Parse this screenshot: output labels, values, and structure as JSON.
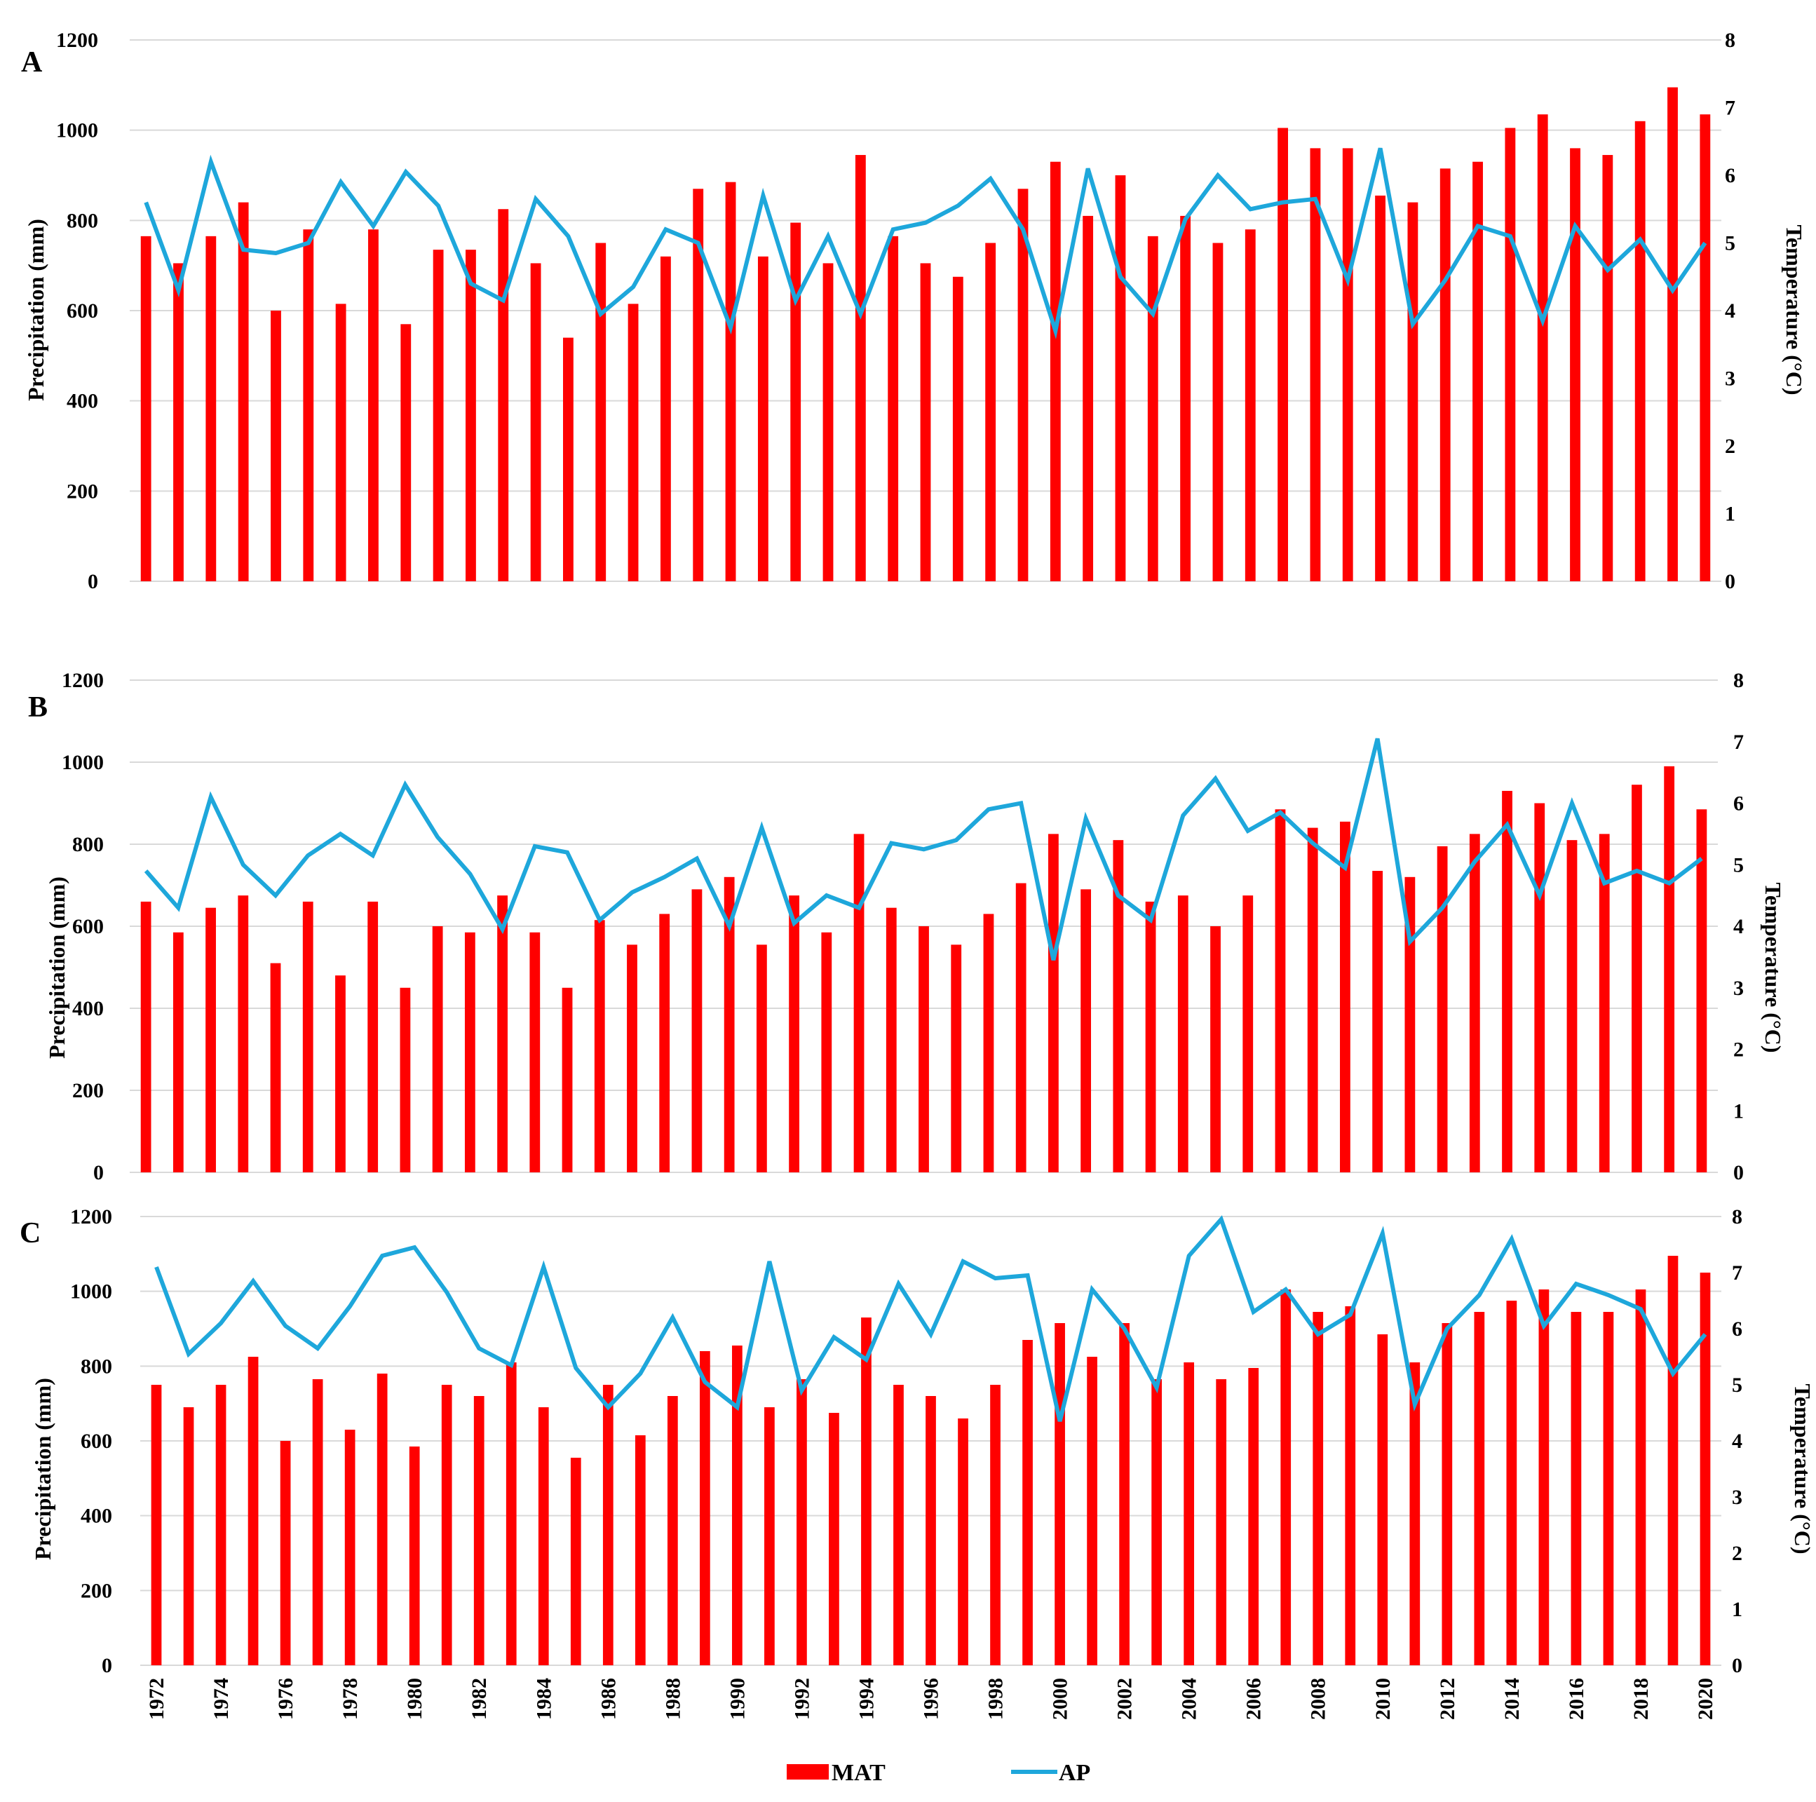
{
  "chart_data": [
    {
      "type": "bar",
      "panel": "A",
      "x": [
        1972,
        1973,
        1974,
        1975,
        1976,
        1977,
        1978,
        1979,
        1980,
        1981,
        1982,
        1983,
        1984,
        1985,
        1986,
        1987,
        1988,
        1989,
        1990,
        1991,
        1992,
        1993,
        1994,
        1995,
        1996,
        1997,
        1998,
        1999,
        2000,
        2001,
        2002,
        2003,
        2004,
        2005,
        2006,
        2007,
        2008,
        2009,
        2010,
        2011,
        2012,
        2013,
        2014,
        2015,
        2016,
        2017,
        2018,
        2019,
        2020
      ],
      "xlabel": "",
      "ylabel": "Precipitation (mm)",
      "y2label": "Temperature (°C)",
      "ylim": [
        0,
        1200
      ],
      "y2lim": [
        0,
        8
      ],
      "yticks": [
        0,
        200,
        400,
        600,
        800,
        1000,
        1200
      ],
      "y2ticks": [
        0,
        1,
        2,
        3,
        4,
        5,
        6,
        7,
        8
      ],
      "grid": true,
      "series": [
        {
          "name": "MAT",
          "type": "bar",
          "axis": "left",
          "color": "#ff0000",
          "values": [
            765,
            705,
            765,
            840,
            600,
            780,
            615,
            780,
            570,
            735,
            735,
            825,
            705,
            540,
            750,
            615,
            720,
            870,
            885,
            720,
            795,
            705,
            945,
            765,
            705,
            675,
            750,
            870,
            930,
            810,
            900,
            765,
            810,
            750,
            780,
            1005,
            960,
            960,
            855,
            840,
            915,
            930,
            1005,
            1035,
            960,
            945,
            1020,
            1095,
            1035
          ]
        },
        {
          "name": "AP",
          "type": "line",
          "axis": "right",
          "color": "#1ea7db",
          "values": [
            5.6,
            4.3,
            6.2,
            4.9,
            4.85,
            5.0,
            5.9,
            5.25,
            6.05,
            5.55,
            4.4,
            4.15,
            5.65,
            5.1,
            3.95,
            4.35,
            5.2,
            5.0,
            3.75,
            5.7,
            4.15,
            5.1,
            3.95,
            5.2,
            5.3,
            5.55,
            5.95,
            5.2,
            3.7,
            6.1,
            4.5,
            3.95,
            5.35,
            6.0,
            5.5,
            5.6,
            5.65,
            4.45,
            6.4,
            3.8,
            4.45,
            5.25,
            5.1,
            3.85,
            5.25,
            4.6,
            5.05,
            4.3,
            5.0
          ]
        }
      ]
    },
    {
      "type": "bar",
      "panel": "B",
      "x": [
        1972,
        1973,
        1974,
        1975,
        1976,
        1977,
        1978,
        1979,
        1980,
        1981,
        1982,
        1983,
        1984,
        1985,
        1986,
        1987,
        1988,
        1989,
        1990,
        1991,
        1992,
        1993,
        1994,
        1995,
        1996,
        1997,
        1998,
        1999,
        2000,
        2001,
        2002,
        2003,
        2004,
        2005,
        2006,
        2007,
        2008,
        2009,
        2010,
        2011,
        2012,
        2013,
        2014,
        2015,
        2016,
        2017,
        2018,
        2019,
        2020
      ],
      "xlabel": "",
      "ylabel": "Precipitation (mm)",
      "y2label": "Temperature (°C)",
      "ylim": [
        0,
        1200
      ],
      "y2lim": [
        0,
        8
      ],
      "yticks": [
        0,
        200,
        400,
        600,
        800,
        1000,
        1200
      ],
      "y2ticks": [
        0,
        1,
        2,
        3,
        4,
        5,
        6,
        7,
        8
      ],
      "grid": true,
      "series": [
        {
          "name": "MAT",
          "type": "bar",
          "axis": "left",
          "color": "#ff0000",
          "values": [
            660,
            585,
            645,
            675,
            510,
            660,
            480,
            660,
            450,
            600,
            585,
            675,
            585,
            450,
            615,
            555,
            630,
            690,
            720,
            555,
            675,
            585,
            825,
            645,
            600,
            555,
            630,
            705,
            825,
            690,
            810,
            660,
            675,
            600,
            675,
            885,
            840,
            855,
            735,
            720,
            795,
            825,
            930,
            900,
            810,
            825,
            945,
            990,
            885
          ]
        },
        {
          "name": "AP",
          "type": "line",
          "axis": "right",
          "color": "#1ea7db",
          "values": [
            4.9,
            4.3,
            6.1,
            5.0,
            4.5,
            5.15,
            5.5,
            5.15,
            6.3,
            5.45,
            4.85,
            3.95,
            5.3,
            5.2,
            4.1,
            4.55,
            4.8,
            5.1,
            4.0,
            5.6,
            4.05,
            4.5,
            4.3,
            5.35,
            5.25,
            5.4,
            5.9,
            6.0,
            3.45,
            5.75,
            4.5,
            4.1,
            5.8,
            6.4,
            5.55,
            5.85,
            5.35,
            4.95,
            7.05,
            3.75,
            4.3,
            5.05,
            5.65,
            4.5,
            6.0,
            4.7,
            4.9,
            4.7,
            5.1
          ]
        }
      ]
    },
    {
      "type": "bar",
      "panel": "C",
      "x": [
        1972,
        1973,
        1974,
        1975,
        1976,
        1977,
        1978,
        1979,
        1980,
        1981,
        1982,
        1983,
        1984,
        1985,
        1986,
        1987,
        1988,
        1989,
        1990,
        1991,
        1992,
        1993,
        1994,
        1995,
        1996,
        1997,
        1998,
        1999,
        2000,
        2001,
        2002,
        2003,
        2004,
        2005,
        2006,
        2007,
        2008,
        2009,
        2010,
        2011,
        2012,
        2013,
        2014,
        2015,
        2016,
        2017,
        2018,
        2019,
        2020
      ],
      "xtick_labels": [
        "1972",
        "1974",
        "1976",
        "1978",
        "1980",
        "1982",
        "1984",
        "1986",
        "1988",
        "1990",
        "1992",
        "1994",
        "1996",
        "1998",
        "2000",
        "2002",
        "2004",
        "2006",
        "2008",
        "2010",
        "2012",
        "2014",
        "2016",
        "2018",
        "2020"
      ],
      "xlabel": "",
      "ylabel": "Precipitation (mm)",
      "y2label": "Temperature (°C)",
      "ylim": [
        0,
        1200
      ],
      "y2lim": [
        0,
        8
      ],
      "yticks": [
        0,
        200,
        400,
        600,
        800,
        1000,
        1200
      ],
      "y2ticks": [
        0,
        1,
        2,
        3,
        4,
        5,
        6,
        7,
        8
      ],
      "grid": true,
      "series": [
        {
          "name": "MAT",
          "type": "bar",
          "axis": "left",
          "color": "#ff0000",
          "values": [
            750,
            690,
            750,
            825,
            600,
            765,
            630,
            780,
            585,
            750,
            720,
            810,
            690,
            555,
            750,
            615,
            720,
            840,
            855,
            690,
            765,
            675,
            930,
            750,
            720,
            660,
            750,
            870,
            915,
            825,
            915,
            765,
            810,
            765,
            795,
            1005,
            945,
            960,
            885,
            810,
            915,
            945,
            975,
            1005,
            945,
            945,
            1005,
            1095,
            1050
          ]
        },
        {
          "name": "AP",
          "type": "line",
          "axis": "right",
          "color": "#1ea7db",
          "values": [
            7.1,
            5.55,
            6.1,
            6.85,
            6.05,
            5.65,
            6.4,
            7.3,
            7.45,
            6.65,
            5.65,
            5.35,
            7.1,
            5.3,
            4.6,
            5.2,
            6.2,
            5.05,
            4.6,
            7.2,
            4.9,
            5.85,
            5.45,
            6.8,
            5.9,
            7.2,
            6.9,
            6.95,
            4.35,
            6.7,
            6.0,
            4.95,
            7.3,
            7.95,
            6.3,
            6.7,
            5.9,
            6.25,
            7.7,
            4.65,
            6.0,
            6.6,
            7.6,
            6.05,
            6.8,
            6.6,
            6.35,
            5.2,
            5.9
          ]
        }
      ]
    }
  ],
  "panels": [
    {
      "letter": "A",
      "ylabel": "Precipitation (mm)",
      "y2label": "Temperature (°C)"
    },
    {
      "letter": "B",
      "ylabel": "Precipitation (mm)",
      "y2label": "Temperature (°C)"
    },
    {
      "letter": "C",
      "ylabel": "Precipitation (mm)",
      "y2label": "Temperature (°C)"
    }
  ],
  "legend": [
    {
      "label": "MAT",
      "color": "#ff0000",
      "marker": "bar"
    },
    {
      "label": "AP",
      "color": "#1ea7db",
      "marker": "line"
    }
  ]
}
